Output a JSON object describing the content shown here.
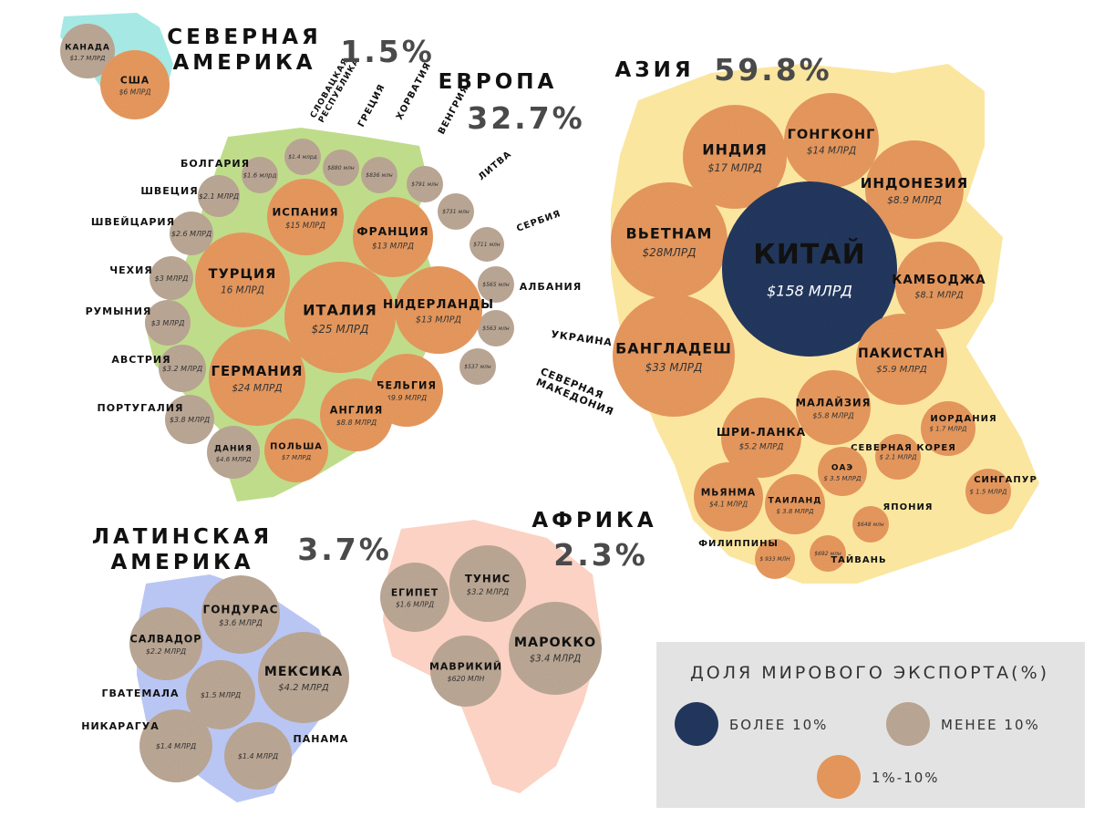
{
  "colors": {
    "large": "#23385f",
    "mid": "#e99a5e",
    "small": "#bda996",
    "asia_bg": "#fbe6a0",
    "europe_bg": "#bfdc8a",
    "na_bg": "#a5e8e4",
    "latam_bg": "#b9c6f4",
    "africa_bg": "#fbd2c4",
    "legend_bg": "#e3e3e3"
  },
  "regions": [
    {
      "key": "na_name",
      "lines": [
        "СЕВЕРНАЯ",
        "АМЕРИКА"
      ]
    },
    {
      "key": "na_pct",
      "lines": [
        "1.5%"
      ]
    },
    {
      "key": "eu_name",
      "lines": [
        "ЕВРОПА"
      ]
    },
    {
      "key": "eu_pct",
      "lines": [
        "32.7%"
      ]
    },
    {
      "key": "asia_name",
      "lines": [
        "АЗИЯ"
      ]
    },
    {
      "key": "asia_pct",
      "lines": [
        "59.8%"
      ]
    },
    {
      "key": "latam_name",
      "lines": [
        "ЛАТИНСКАЯ",
        "АМЕРИКА"
      ]
    },
    {
      "key": "latam_pct",
      "lines": [
        "3.7%"
      ]
    },
    {
      "key": "africa_name",
      "lines": [
        "АФРИКА"
      ]
    },
    {
      "key": "africa_pct",
      "lines": [
        "2.3%"
      ]
    }
  ],
  "countries": [
    {
      "key": "canada",
      "name": [
        "КАНАДА"
      ],
      "value": "$1.7 МЛРД",
      "tier": "small"
    },
    {
      "key": "usa",
      "name": [
        "США"
      ],
      "value": "$6 МЛРД",
      "tier": "mid"
    },
    {
      "key": "slovakia",
      "name": [
        "СЛОВАЦКАЯ",
        "РЕСПУБЛИКА"
      ],
      "value": "$1.4 млрд",
      "tier": "small"
    },
    {
      "key": "greece",
      "name": [
        "ГРЕЦИЯ"
      ],
      "value": "$880 млн",
      "tier": "small"
    },
    {
      "key": "croatia",
      "name": [
        "ХОРВАТИЯ"
      ],
      "value": "$836 млн",
      "tier": "small"
    },
    {
      "key": "hungary",
      "name": [
        "ВЕНГРИЯ"
      ],
      "value": "$791 млн",
      "tier": "small"
    },
    {
      "key": "lithuania",
      "name": [
        "ЛИТВА"
      ],
      "value": "$731 млн",
      "tier": "small"
    },
    {
      "key": "serbia",
      "name": [
        "СЕРБИЯ"
      ],
      "value": "$711 млн",
      "tier": "small"
    },
    {
      "key": "albania",
      "name": [
        "АЛБАНИЯ"
      ],
      "value": "$565 млн",
      "tier": "small"
    },
    {
      "key": "ukraine",
      "name": [
        "УКРАИНА"
      ],
      "value": "$563 млн",
      "tier": "small"
    },
    {
      "key": "macedonia",
      "name": [
        "СЕВЕРНАЯ",
        "МАКЕДОНИЯ"
      ],
      "value": "$537 млн",
      "tier": "small"
    },
    {
      "key": "bulgaria",
      "name": [
        "БОЛГАРИЯ"
      ],
      "value": "$1.6 млрд",
      "tier": "small"
    },
    {
      "key": "sweden",
      "name": [
        "ШВЕЦИЯ"
      ],
      "value": "$2.1 МЛРД",
      "tier": "small"
    },
    {
      "key": "switzerland",
      "name": [
        "ШВЕЙЦАРИЯ"
      ],
      "value": "$2.6 МЛРД",
      "tier": "small"
    },
    {
      "key": "czech",
      "name": [
        "ЧЕХИЯ"
      ],
      "value": "$3 МЛРД",
      "tier": "small"
    },
    {
      "key": "romania",
      "name": [
        "РУМЫНИЯ"
      ],
      "value": "$3 МЛРД",
      "tier": "small"
    },
    {
      "key": "austria",
      "name": [
        "АВСТРИЯ"
      ],
      "value": "$3.2 МЛРД",
      "tier": "small"
    },
    {
      "key": "portugal",
      "name": [
        "ПОРТУГАЛИЯ"
      ],
      "value": "$3.8 МЛРД",
      "tier": "small"
    },
    {
      "key": "denmark",
      "name": [
        "ДАНИЯ"
      ],
      "value": "$4.6 МЛРД",
      "tier": "small"
    },
    {
      "key": "spain",
      "name": [
        "ИСПАНИЯ"
      ],
      "value": "$15 МЛРД",
      "tier": "mid"
    },
    {
      "key": "france",
      "name": [
        "ФРАНЦИЯ"
      ],
      "value": "$13 МЛРД",
      "tier": "mid"
    },
    {
      "key": "turkey",
      "name": [
        "ТУРЦИЯ"
      ],
      "value": "16 МЛРД",
      "tier": "mid"
    },
    {
      "key": "italy",
      "name": [
        "ИТАЛИЯ"
      ],
      "value": "$25 МЛРД",
      "tier": "mid"
    },
    {
      "key": "netherlands",
      "name": [
        "НИДЕРЛАНДЫ"
      ],
      "value": "$13 МЛРД",
      "tier": "mid"
    },
    {
      "key": "germany",
      "name": [
        "ГЕРМАНИЯ"
      ],
      "value": "$24 МЛРД",
      "tier": "mid"
    },
    {
      "key": "belgium",
      "name": [
        "БЕЛЬГИЯ"
      ],
      "value": "$9.9 МЛРД",
      "tier": "mid"
    },
    {
      "key": "england",
      "name": [
        "АНГЛИЯ"
      ],
      "value": "$8.8 МЛРД",
      "tier": "mid"
    },
    {
      "key": "poland",
      "name": [
        "ПОЛЬША"
      ],
      "value": "$7 МЛРД",
      "tier": "mid"
    },
    {
      "key": "india",
      "name": [
        "ИНДИЯ"
      ],
      "value": "$17 МЛРД",
      "tier": "mid"
    },
    {
      "key": "hongkong",
      "name": [
        "ГОНГКОНГ"
      ],
      "value": "$14 МЛРД",
      "tier": "mid"
    },
    {
      "key": "indonesia",
      "name": [
        "ИНДОНЕЗИЯ"
      ],
      "value": "$8.9 МЛРД",
      "tier": "mid"
    },
    {
      "key": "vietnam",
      "name": [
        "ВЬЕТНАМ"
      ],
      "value": "$28МЛРД",
      "tier": "mid"
    },
    {
      "key": "china",
      "name": [
        "КИТАЙ"
      ],
      "value": "$158 МЛРД",
      "tier": "large"
    },
    {
      "key": "cambodia",
      "name": [
        "КАМБОДЖА"
      ],
      "value": "$8.1 МЛРД",
      "tier": "mid"
    },
    {
      "key": "bangladesh",
      "name": [
        "БАНГЛАДЕШ"
      ],
      "value": "$33 МЛРД",
      "tier": "mid"
    },
    {
      "key": "pakistan",
      "name": [
        "ПАКИСТАН"
      ],
      "value": "$5.9 МЛРД",
      "tier": "mid"
    },
    {
      "key": "malaysia",
      "name": [
        "МАЛАЙЗИЯ"
      ],
      "value": "$5.8 МЛРД",
      "tier": "mid"
    },
    {
      "key": "srilanka",
      "name": [
        "ШРИ-ЛАНКА"
      ],
      "value": "$5.2 МЛРД",
      "tier": "mid"
    },
    {
      "key": "jordan",
      "name": [
        "ИОРДАНИЯ"
      ],
      "value": "$ 1.7 МЛРД",
      "tier": "mid"
    },
    {
      "key": "northkorea",
      "name": [
        "СЕВЕРНАЯ КОРЕЯ"
      ],
      "value": "$ 2.1 МЛРД",
      "tier": "mid"
    },
    {
      "key": "uae",
      "name": [
        "ОАЭ"
      ],
      "value": "$ 3.5 МЛРД",
      "tier": "mid"
    },
    {
      "key": "myanmar",
      "name": [
        "МЬЯНМА"
      ],
      "value": "$4.1 МЛРД",
      "tier": "mid"
    },
    {
      "key": "thailand",
      "name": [
        "ТАИЛАНД"
      ],
      "value": "$ 3.8 МЛРД",
      "tier": "mid"
    },
    {
      "key": "singapore",
      "name": [
        "СИНГАПУР"
      ],
      "value": "$ 1.5 МЛРД",
      "tier": "mid"
    },
    {
      "key": "japan",
      "name": [
        "ЯПОНИЯ"
      ],
      "value": "$648 млн",
      "tier": "mid"
    },
    {
      "key": "philippines",
      "name": [
        "ФИЛИППИНЫ"
      ],
      "value": "$ 933 МЛН",
      "tier": "mid"
    },
    {
      "key": "taiwan",
      "name": [
        "ТАЙВАНЬ"
      ],
      "value": "$692 млн",
      "tier": "mid"
    },
    {
      "key": "egypt",
      "name": [
        "ЕГИПЕТ"
      ],
      "value": "$1.6 МЛРД",
      "tier": "small"
    },
    {
      "key": "tunisia",
      "name": [
        "ТУНИС"
      ],
      "value": "$3.2 МЛРД",
      "tier": "small"
    },
    {
      "key": "morocco",
      "name": [
        "МАРОККО"
      ],
      "value": "$3.4 МЛРД",
      "tier": "small"
    },
    {
      "key": "mauritius",
      "name": [
        "МАВРИКИЙ"
      ],
      "value": "$620 МЛН",
      "tier": "small"
    },
    {
      "key": "honduras",
      "name": [
        "ГОНДУРАС"
      ],
      "value": "$3.6 МЛРД",
      "tier": "small"
    },
    {
      "key": "salvador",
      "name": [
        "САЛВАДОР"
      ],
      "value": "$2.2 МЛРД",
      "tier": "small"
    },
    {
      "key": "guatemala",
      "name": [
        "ГВАТЕМАЛА"
      ],
      "value": "$1.5 МЛРД",
      "tier": "small"
    },
    {
      "key": "mexico",
      "name": [
        "МЕКСИКА"
      ],
      "value": "$4.2 МЛРД",
      "tier": "small"
    },
    {
      "key": "nicaragua",
      "name": [
        "НИКАРАГУА"
      ],
      "value": "$1.4 МЛРД",
      "tier": "small"
    },
    {
      "key": "panama",
      "name": [
        "ПАНАМА"
      ],
      "value": "$1.4 МЛРД",
      "tier": "small"
    }
  ],
  "legend": {
    "title": "ДОЛЯ МИРОВОГО ЭКСПОРТА(%)",
    "items": [
      {
        "label": "БОЛЕЕ 10%",
        "tier": "large"
      },
      {
        "label": "МЕНЕЕ 10%",
        "tier": "small"
      },
      {
        "label": "1%-10%",
        "tier": "mid"
      }
    ]
  }
}
